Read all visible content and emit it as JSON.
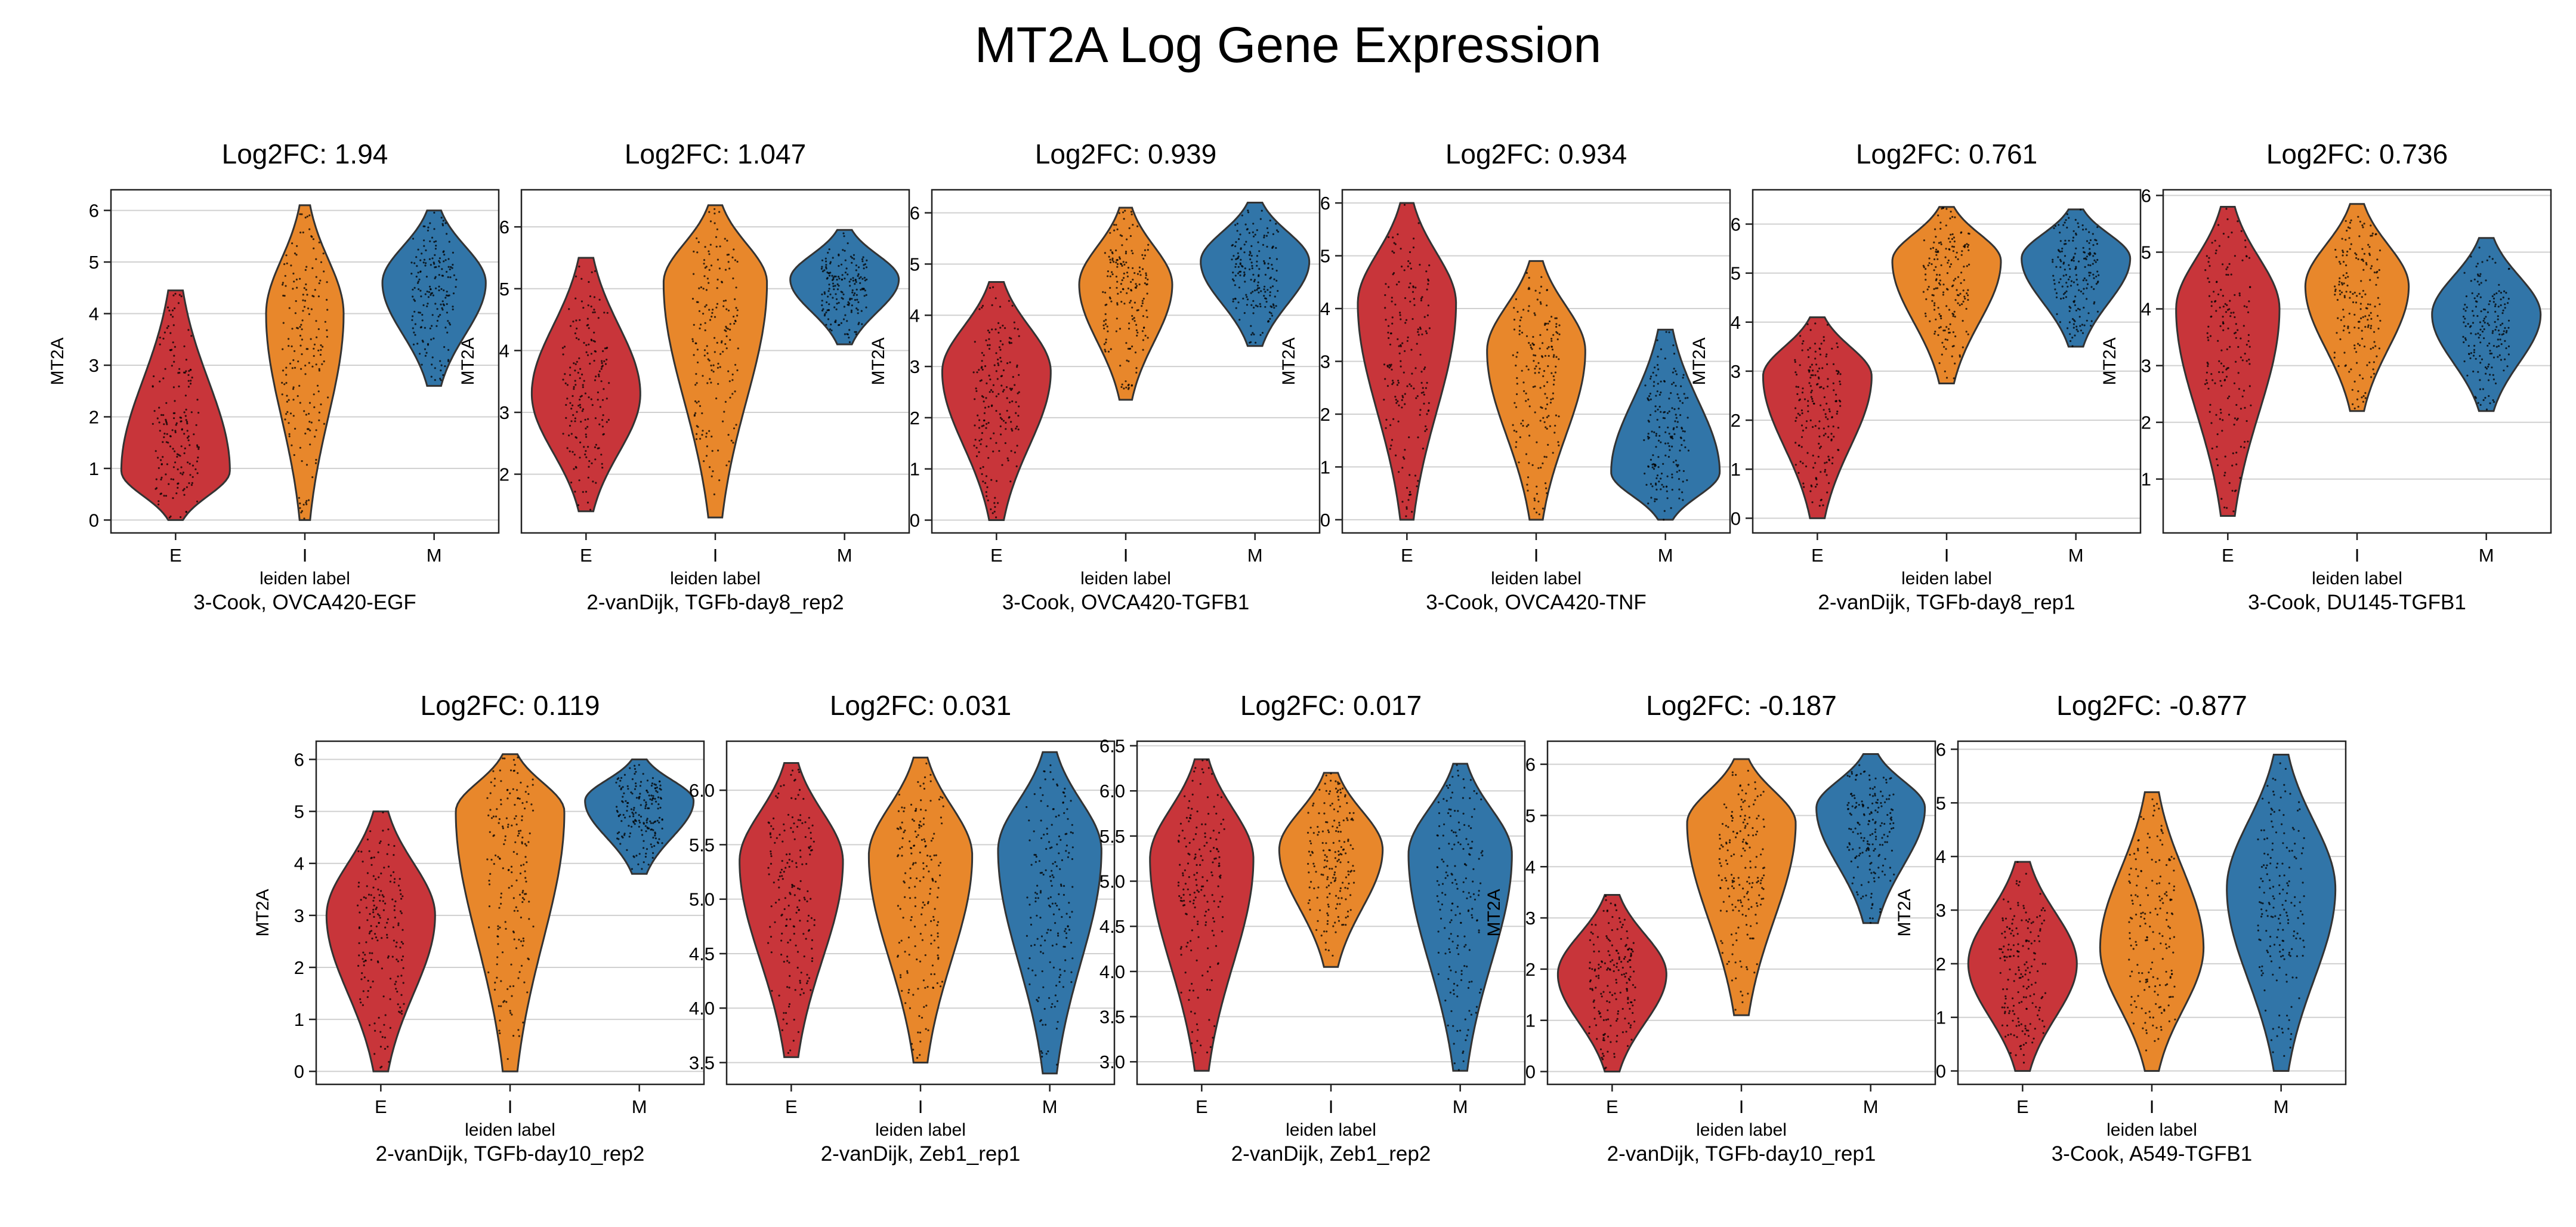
{
  "title": "MT2A Log Gene Expression",
  "colors": {
    "E": "#c8353a",
    "I": "#e8872b",
    "M": "#3175a8",
    "outline": "#333333",
    "grid": "#d0d0d0"
  },
  "chart_data": [
    {
      "type": "violin",
      "title": "Log2FC: 1.94",
      "subtitle": "3-Cook, OVCA420-EGF",
      "xlabel": "leiden label",
      "ylabel": "MT2A",
      "categories": [
        "E",
        "I",
        "M"
      ],
      "yticks": [
        0,
        1,
        2,
        3,
        4,
        5,
        6
      ],
      "ylim": [
        -0.25,
        6.4
      ],
      "grid": true,
      "violins": [
        {
          "min": 0,
          "max": 4.45,
          "peak": 0.95,
          "width": 0.42
        },
        {
          "min": 0,
          "max": 6.1,
          "peak": 4.0,
          "width": 0.3
        },
        {
          "min": 2.6,
          "max": 6.0,
          "peak": 4.6,
          "width": 0.4
        }
      ]
    },
    {
      "type": "violin",
      "title": "Log2FC: 1.047",
      "subtitle": "2-vanDijk, TGFb-day8_rep2",
      "xlabel": "leiden label",
      "ylabel": "MT2A",
      "categories": [
        "E",
        "I",
        "M"
      ],
      "yticks": [
        2,
        3,
        4,
        5,
        6
      ],
      "ylim": [
        1.05,
        6.6
      ],
      "grid": true,
      "violins": [
        {
          "min": 1.4,
          "max": 5.5,
          "peak": 3.3,
          "width": 0.42
        },
        {
          "min": 1.3,
          "max": 6.35,
          "peak": 5.1,
          "width": 0.4
        },
        {
          "min": 4.1,
          "max": 5.95,
          "peak": 5.15,
          "width": 0.42
        }
      ]
    },
    {
      "type": "violin",
      "title": "Log2FC: 0.939",
      "subtitle": "3-Cook, OVCA420-TGFB1",
      "xlabel": "leiden label",
      "ylabel": "MT2A",
      "categories": [
        "E",
        "I",
        "M"
      ],
      "yticks": [
        0,
        1,
        2,
        3,
        4,
        5,
        6
      ],
      "ylim": [
        -0.25,
        6.45
      ],
      "grid": true,
      "violins": [
        {
          "min": 0,
          "max": 4.65,
          "peak": 2.9,
          "width": 0.42
        },
        {
          "min": 2.35,
          "max": 6.1,
          "peak": 4.6,
          "width": 0.36
        },
        {
          "min": 3.4,
          "max": 6.2,
          "peak": 5.05,
          "width": 0.42
        }
      ]
    },
    {
      "type": "violin",
      "title": "Log2FC: 0.934",
      "subtitle": "3-Cook, OVCA420-TNF",
      "xlabel": "leiden label",
      "ylabel": "MT2A",
      "categories": [
        "E",
        "I",
        "M"
      ],
      "yticks": [
        0,
        1,
        2,
        3,
        4,
        5,
        6
      ],
      "ylim": [
        -0.25,
        6.25
      ],
      "grid": true,
      "violins": [
        {
          "min": 0,
          "max": 6.0,
          "peak": 4.1,
          "width": 0.38
        },
        {
          "min": 0,
          "max": 4.9,
          "peak": 3.2,
          "width": 0.38
        },
        {
          "min": 0,
          "max": 3.6,
          "peak": 0.9,
          "width": 0.42
        }
      ]
    },
    {
      "type": "violin",
      "title": "Log2FC: 0.761",
      "subtitle": "2-vanDijk, TGFb-day8_rep1",
      "xlabel": "leiden label",
      "ylabel": "MT2A",
      "categories": [
        "E",
        "I",
        "M"
      ],
      "yticks": [
        0,
        1,
        2,
        3,
        4,
        5,
        6
      ],
      "ylim": [
        -0.3,
        6.7
      ],
      "grid": true,
      "violins": [
        {
          "min": 0,
          "max": 4.1,
          "peak": 2.9,
          "width": 0.42
        },
        {
          "min": 2.75,
          "max": 6.35,
          "peak": 5.25,
          "width": 0.42
        },
        {
          "min": 3.5,
          "max": 6.3,
          "peak": 5.3,
          "width": 0.42
        }
      ]
    },
    {
      "type": "violin",
      "title": "Log2FC: 0.736",
      "subtitle": "3-Cook, DU145-TGFB1",
      "xlabel": "leiden label",
      "ylabel": "MT2A",
      "categories": [
        "E",
        "I",
        "M"
      ],
      "yticks": [
        1,
        2,
        3,
        4,
        5,
        6
      ],
      "ylim": [
        0.05,
        6.1
      ],
      "grid": true,
      "violins": [
        {
          "min": 0.35,
          "max": 5.8,
          "peak": 4.0,
          "width": 0.4
        },
        {
          "min": 2.2,
          "max": 5.85,
          "peak": 4.4,
          "width": 0.4
        },
        {
          "min": 2.2,
          "max": 5.25,
          "peak": 3.9,
          "width": 0.42
        }
      ]
    },
    {
      "type": "violin",
      "title": "Log2FC: 0.119",
      "subtitle": "2-vanDijk, TGFb-day10_rep2",
      "xlabel": "leiden label",
      "ylabel": "MT2A",
      "categories": [
        "E",
        "I",
        "M"
      ],
      "yticks": [
        0,
        1,
        2,
        3,
        4,
        5,
        6
      ],
      "ylim": [
        -0.25,
        6.35
      ],
      "grid": true,
      "violins": [
        {
          "min": 0,
          "max": 5.0,
          "peak": 3.0,
          "width": 0.42
        },
        {
          "min": 0,
          "max": 6.1,
          "peak": 5.0,
          "width": 0.42
        },
        {
          "min": 3.8,
          "max": 6.0,
          "peak": 5.2,
          "width": 0.42
        }
      ]
    },
    {
      "type": "violin",
      "title": "Log2FC: 0.031",
      "subtitle": "2-vanDijk, Zeb1_rep1",
      "xlabel": "leiden label",
      "ylabel": "",
      "categories": [
        "E",
        "I",
        "M"
      ],
      "yticks": [
        3.5,
        4.0,
        4.5,
        5.0,
        5.5,
        6.0
      ],
      "ylim": [
        3.3,
        6.45
      ],
      "grid": true,
      "violins": [
        {
          "min": 3.55,
          "max": 6.25,
          "peak": 5.35,
          "width": 0.4
        },
        {
          "min": 3.5,
          "max": 6.3,
          "peak": 5.4,
          "width": 0.4
        },
        {
          "min": 3.4,
          "max": 6.35,
          "peak": 5.45,
          "width": 0.4
        }
      ]
    },
    {
      "type": "violin",
      "title": "Log2FC: 0.017",
      "subtitle": "2-vanDijk, Zeb1_rep2",
      "xlabel": "leiden label",
      "ylabel": "",
      "categories": [
        "E",
        "I",
        "M"
      ],
      "yticks": [
        3.0,
        3.5,
        4.0,
        4.5,
        5.0,
        5.5,
        6.0,
        6.5
      ],
      "ylim": [
        2.75,
        6.55
      ],
      "grid": true,
      "violins": [
        {
          "min": 2.9,
          "max": 6.35,
          "peak": 5.25,
          "width": 0.4
        },
        {
          "min": 4.05,
          "max": 6.2,
          "peak": 5.35,
          "width": 0.4
        },
        {
          "min": 2.9,
          "max": 6.3,
          "peak": 5.3,
          "width": 0.4
        }
      ]
    },
    {
      "type": "violin",
      "title": "Log2FC: -0.187",
      "subtitle": "2-vanDijk, TGFb-day10_rep1",
      "xlabel": "leiden label",
      "ylabel": "MT2A",
      "categories": [
        "E",
        "I",
        "M"
      ],
      "yticks": [
        0,
        1,
        2,
        3,
        4,
        5,
        6
      ],
      "ylim": [
        -0.25,
        6.45
      ],
      "grid": true,
      "violins": [
        {
          "min": 0,
          "max": 3.45,
          "peak": 1.9,
          "width": 0.42
        },
        {
          "min": 1.1,
          "max": 6.1,
          "peak": 4.85,
          "width": 0.42
        },
        {
          "min": 2.9,
          "max": 6.2,
          "peak": 5.15,
          "width": 0.42
        }
      ]
    },
    {
      "type": "violin",
      "title": "Log2FC: -0.877",
      "subtitle": "3-Cook, A549-TGFB1",
      "xlabel": "leiden label",
      "ylabel": "MT2A",
      "categories": [
        "E",
        "I",
        "M"
      ],
      "yticks": [
        0,
        1,
        2,
        3,
        4,
        5,
        6
      ],
      "ylim": [
        -0.25,
        6.15
      ],
      "grid": true,
      "violins": [
        {
          "min": 0,
          "max": 3.9,
          "peak": 2.0,
          "width": 0.42
        },
        {
          "min": 0,
          "max": 5.2,
          "peak": 2.3,
          "width": 0.4
        },
        {
          "min": 0,
          "max": 5.9,
          "peak": 3.4,
          "width": 0.42
        }
      ]
    }
  ]
}
